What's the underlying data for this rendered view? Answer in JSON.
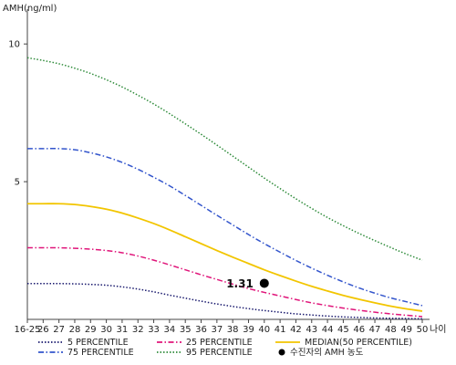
{
  "chart_data": {
    "type": "line",
    "title": "",
    "ylabel": "AMH(ng/ml)",
    "xlabel": "나이",
    "ylim": [
      0,
      11
    ],
    "y_ticks": [
      5,
      10
    ],
    "categories": [
      "16-25",
      "26",
      "27",
      "28",
      "29",
      "30",
      "31",
      "32",
      "33",
      "34",
      "35",
      "36",
      "37",
      "38",
      "39",
      "40",
      "41",
      "42",
      "43",
      "44",
      "45",
      "46",
      "47",
      "48",
      "49",
      "50"
    ],
    "grid": false,
    "legend_position": "bottom",
    "series": [
      {
        "name": "5 PERCENTILE",
        "color": "#1a1a6e",
        "dash": "dotted",
        "values": [
          1.3,
          1.3,
          1.3,
          1.29,
          1.27,
          1.24,
          1.18,
          1.1,
          1.0,
          0.88,
          0.77,
          0.66,
          0.56,
          0.47,
          0.39,
          0.32,
          0.26,
          0.2,
          0.16,
          0.12,
          0.09,
          0.07,
          0.05,
          0.04,
          0.03,
          0.02
        ]
      },
      {
        "name": "25 PERCENTILE",
        "color": "#e0157a",
        "dash": "dashdot",
        "values": [
          2.6,
          2.6,
          2.6,
          2.58,
          2.55,
          2.5,
          2.42,
          2.3,
          2.15,
          1.98,
          1.8,
          1.62,
          1.45,
          1.28,
          1.12,
          0.98,
          0.85,
          0.72,
          0.6,
          0.5,
          0.41,
          0.33,
          0.26,
          0.2,
          0.15,
          0.1
        ]
      },
      {
        "name": "MEDIAN(50 PERCENTILE)",
        "color": "#f2c500",
        "dash": "solid",
        "values": [
          4.2,
          4.2,
          4.2,
          4.17,
          4.1,
          4.0,
          3.86,
          3.68,
          3.48,
          3.25,
          3.0,
          2.75,
          2.5,
          2.26,
          2.03,
          1.8,
          1.59,
          1.39,
          1.2,
          1.03,
          0.87,
          0.73,
          0.6,
          0.48,
          0.38,
          0.3
        ]
      },
      {
        "name": "75 PERCENTILE",
        "color": "#3355cc",
        "dash": "dashdot",
        "values": [
          6.2,
          6.2,
          6.2,
          6.16,
          6.05,
          5.9,
          5.7,
          5.45,
          5.16,
          4.85,
          4.5,
          4.14,
          3.78,
          3.43,
          3.08,
          2.75,
          2.44,
          2.14,
          1.86,
          1.6,
          1.36,
          1.14,
          0.95,
          0.78,
          0.64,
          0.5
        ]
      },
      {
        "name": "95 PERCENTILE",
        "color": "#2e8b3a",
        "dash": "dotted",
        "values": [
          9.5,
          9.4,
          9.28,
          9.12,
          8.93,
          8.7,
          8.44,
          8.14,
          7.82,
          7.47,
          7.1,
          6.72,
          6.33,
          5.93,
          5.53,
          5.13,
          4.75,
          4.38,
          4.03,
          3.7,
          3.4,
          3.12,
          2.86,
          2.61,
          2.37,
          2.15
        ]
      }
    ],
    "marker": {
      "name": "수진자의 AMH 농도",
      "category": "40",
      "value": 1.31,
      "label": "1.31",
      "color": "#000000"
    }
  }
}
